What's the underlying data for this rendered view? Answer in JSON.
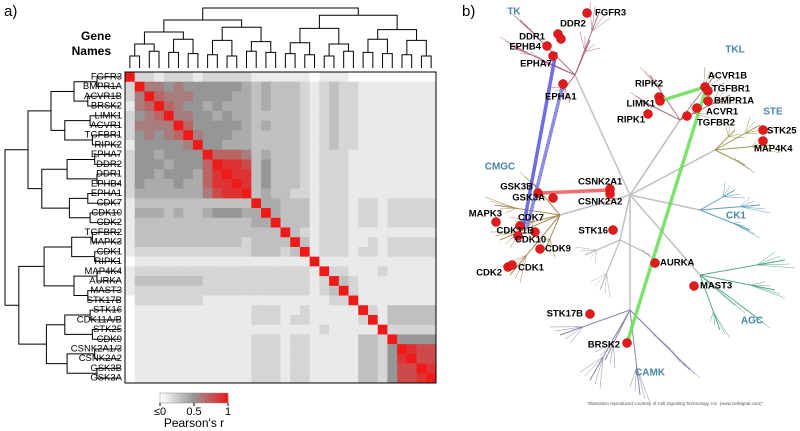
{
  "panel_a": {
    "label": "a)",
    "header": [
      "Gene",
      "Names"
    ],
    "genes": [
      "FGFR3",
      "BMPR1A",
      "ACVR1B",
      "BRSK2",
      "LIMK1",
      "ACVR1",
      "TGFBR1",
      "RIPK2",
      "EPHA7",
      "DDR2",
      "DDR1",
      "EPHB4",
      "EPHA1",
      "CDK7",
      "CDK10",
      "CDK2",
      "TGFBR2",
      "MAPK3",
      "CDK1",
      "RIPK1",
      "MAP4K4",
      "AURKA",
      "MAST3",
      "STK17B",
      "STK16",
      "CDK11A/B",
      "STK25",
      "CDK9",
      "CSNK2A1/3",
      "CSNK2A2",
      "GSK3B",
      "GSK3A"
    ],
    "correlation": [
      [
        1
      ],
      [
        0.2,
        1
      ],
      [
        0.2,
        0.6,
        1
      ],
      [
        0.1,
        0.6,
        0.7,
        1
      ],
      [
        0.2,
        0.5,
        0.6,
        0.7,
        1
      ],
      [
        0.2,
        0.6,
        0.6,
        0.6,
        0.6,
        1
      ],
      [
        0.2,
        0.5,
        0.6,
        0.5,
        0.6,
        0.7,
        1
      ],
      [
        0.1,
        0.5,
        0.5,
        0.5,
        0.5,
        0.5,
        0.6,
        1
      ],
      [
        0.2,
        0.5,
        0.5,
        0.4,
        0.5,
        0.5,
        0.5,
        0.5,
        1
      ],
      [
        0.2,
        0.5,
        0.5,
        0.5,
        0.4,
        0.5,
        0.5,
        0.5,
        0.7,
        1
      ],
      [
        0.2,
        0.5,
        0.5,
        0.4,
        0.5,
        0.5,
        0.5,
        0.4,
        0.7,
        0.9,
        1
      ],
      [
        0.2,
        0.5,
        0.4,
        0.4,
        0.4,
        0.5,
        0.4,
        0.4,
        0.7,
        0.9,
        0.9,
        1
      ],
      [
        0.2,
        0.4,
        0.4,
        0.4,
        0.4,
        0.4,
        0.4,
        0.4,
        0.6,
        0.8,
        0.9,
        0.9,
        1
      ],
      [
        0.1,
        0.3,
        0.3,
        0.3,
        0.3,
        0.3,
        0.3,
        0.3,
        0.3,
        0.3,
        0.3,
        0.3,
        0.3,
        1
      ],
      [
        0.1,
        0.4,
        0.4,
        0.4,
        0.3,
        0.4,
        0.3,
        0.3,
        0.4,
        0.5,
        0.5,
        0.5,
        0.4,
        0.4,
        1
      ],
      [
        0.1,
        0.3,
        0.3,
        0.3,
        0.3,
        0.3,
        0.3,
        0.3,
        0.3,
        0.3,
        0.3,
        0.3,
        0.3,
        0.4,
        0.4,
        1
      ],
      [
        0.1,
        0.3,
        0.3,
        0.3,
        0.3,
        0.3,
        0.3,
        0.3,
        0.3,
        0.3,
        0.3,
        0.3,
        0.3,
        0.3,
        0.3,
        0.3,
        1
      ],
      [
        0.1,
        0.3,
        0.3,
        0.3,
        0.3,
        0.3,
        0.3,
        0.3,
        0.3,
        0.3,
        0.3,
        0.3,
        0.2,
        0.3,
        0.3,
        0.3,
        0.3,
        1
      ],
      [
        0.1,
        0.2,
        0.2,
        0.2,
        0.2,
        0.2,
        0.2,
        0.2,
        0.2,
        0.2,
        0.2,
        0.2,
        0.2,
        0.3,
        0.3,
        0.3,
        0.2,
        0.3,
        1
      ],
      [
        0,
        0.1,
        0.1,
        0.1,
        0.1,
        0.1,
        0.1,
        0.1,
        0.1,
        0.1,
        0.1,
        0.1,
        0.1,
        0.1,
        0.1,
        0.1,
        0.1,
        0.1,
        0.1,
        1
      ],
      [
        0.1,
        0.2,
        0.2,
        0.2,
        0.2,
        0.2,
        0.2,
        0.2,
        0.2,
        0.2,
        0.2,
        0.2,
        0.2,
        0.2,
        0.2,
        0.2,
        0.2,
        0.2,
        0.2,
        0.1,
        1
      ],
      [
        0.1,
        0.3,
        0.3,
        0.3,
        0.3,
        0.3,
        0.3,
        0.3,
        0.2,
        0.2,
        0.2,
        0.2,
        0.2,
        0.2,
        0.2,
        0.2,
        0.2,
        0.2,
        0.2,
        0.1,
        0.2,
        1
      ],
      [
        0.1,
        0.2,
        0.2,
        0.2,
        0.2,
        0.2,
        0.2,
        0.2,
        0.2,
        0.2,
        0.2,
        0.2,
        0.2,
        0.2,
        0.2,
        0.2,
        0.2,
        0.2,
        0.2,
        0.1,
        0.2,
        0.3,
        1
      ],
      [
        0,
        0.2,
        0.2,
        0.2,
        0.2,
        0.2,
        0.2,
        0.2,
        0.1,
        0.1,
        0.1,
        0.1,
        0.1,
        0.1,
        0.1,
        0.1,
        0.1,
        0.1,
        0.1,
        0.1,
        0.1,
        0.2,
        0.2,
        1
      ],
      [
        0,
        0.1,
        0.1,
        0.1,
        0.1,
        0.1,
        0.1,
        0.1,
        0.1,
        0.1,
        0.1,
        0.1,
        0.1,
        0.2,
        0.2,
        0.2,
        0.1,
        0.1,
        0.2,
        0.1,
        0.1,
        0.1,
        0.1,
        0.1,
        1
      ],
      [
        0,
        0.1,
        0.1,
        0.1,
        0.1,
        0.1,
        0.1,
        0.1,
        0.1,
        0.1,
        0.1,
        0.1,
        0.1,
        0.2,
        0.2,
        0.2,
        0.1,
        0.2,
        0.2,
        0.1,
        0.1,
        0.1,
        0.1,
        0.1,
        0.2,
        1
      ],
      [
        0,
        0.1,
        0.1,
        0.1,
        0.1,
        0.1,
        0.1,
        0.1,
        0.1,
        0.1,
        0.1,
        0.1,
        0.1,
        0.1,
        0.1,
        0.1,
        0.1,
        0.1,
        0.1,
        0.1,
        0.2,
        0.1,
        0.1,
        0.1,
        0.1,
        0.1,
        1
      ],
      [
        0,
        0.1,
        0.1,
        0.1,
        0.1,
        0.1,
        0.1,
        0.1,
        0.1,
        0.1,
        0.1,
        0.1,
        0.1,
        0.2,
        0.2,
        0.2,
        0.1,
        0.2,
        0.2,
        0.1,
        0.1,
        0.1,
        0.1,
        0.1,
        0.3,
        0.3,
        0.2,
        1
      ],
      [
        0,
        0.1,
        0.1,
        0.1,
        0.1,
        0.1,
        0.1,
        0.1,
        0.1,
        0.1,
        0.1,
        0.1,
        0.1,
        0.2,
        0.2,
        0.2,
        0.1,
        0.2,
        0.2,
        0.1,
        0.1,
        0.1,
        0.1,
        0.1,
        0.3,
        0.3,
        0.2,
        0.5,
        1
      ],
      [
        0,
        0.1,
        0.1,
        0.1,
        0.1,
        0.1,
        0.1,
        0.1,
        0.1,
        0.1,
        0.1,
        0.1,
        0.1,
        0.2,
        0.2,
        0.2,
        0.1,
        0.2,
        0.2,
        0.1,
        0.1,
        0.1,
        0.1,
        0.1,
        0.3,
        0.3,
        0.2,
        0.5,
        0.9,
        1
      ],
      [
        0,
        0.1,
        0.1,
        0.1,
        0.1,
        0.1,
        0.1,
        0.1,
        0.1,
        0.1,
        0.1,
        0.1,
        0.1,
        0.2,
        0.2,
        0.2,
        0.1,
        0.2,
        0.2,
        0.1,
        0.1,
        0.1,
        0.1,
        0.1,
        0.3,
        0.3,
        0.2,
        0.5,
        0.8,
        0.8,
        1
      ],
      [
        0,
        0.1,
        0.1,
        0.1,
        0.1,
        0.1,
        0.1,
        0.1,
        0.1,
        0.1,
        0.1,
        0.1,
        0.1,
        0.2,
        0.2,
        0.2,
        0.1,
        0.2,
        0.2,
        0.1,
        0.1,
        0.1,
        0.1,
        0.1,
        0.3,
        0.3,
        0.2,
        0.5,
        0.8,
        0.8,
        0.9,
        1
      ]
    ],
    "colorbar": {
      "ticks": [
        {
          "value": 0,
          "label": "≤0"
        },
        0.5,
        1
      ],
      "label": "Pearson's r"
    }
  },
  "panel_b": {
    "label": "b)",
    "groups": [
      "TK",
      "TKL",
      "STE",
      "CMGC",
      "CK1",
      "AGC",
      "CAMK"
    ],
    "kinases": [
      "FGFR3",
      "DDR2",
      "DDR1",
      "EPHB4",
      "EPHA7",
      "EPHA1",
      "RIPK2",
      "LIMK1",
      "RIPK1",
      "ACVR1B",
      "TGFBR1",
      "BMPR1A",
      "ACVR1",
      "TGFBR2",
      "STK25",
      "MAP4K4",
      "CSNK2A1",
      "CSNK2A2",
      "GSK3B",
      "GSK3A",
      "MAPK3",
      "CDK7",
      "CDK11B",
      "CDK10",
      "CDK9",
      "CDK2",
      "CDK1",
      "STK16",
      "AURKA",
      "MAST3",
      "STK17B",
      "BRSK2"
    ],
    "credit": "\"Illustration reproduced courtesy of Cell Signaling Technology, Inc. (www.cellsignal.com)\""
  }
}
